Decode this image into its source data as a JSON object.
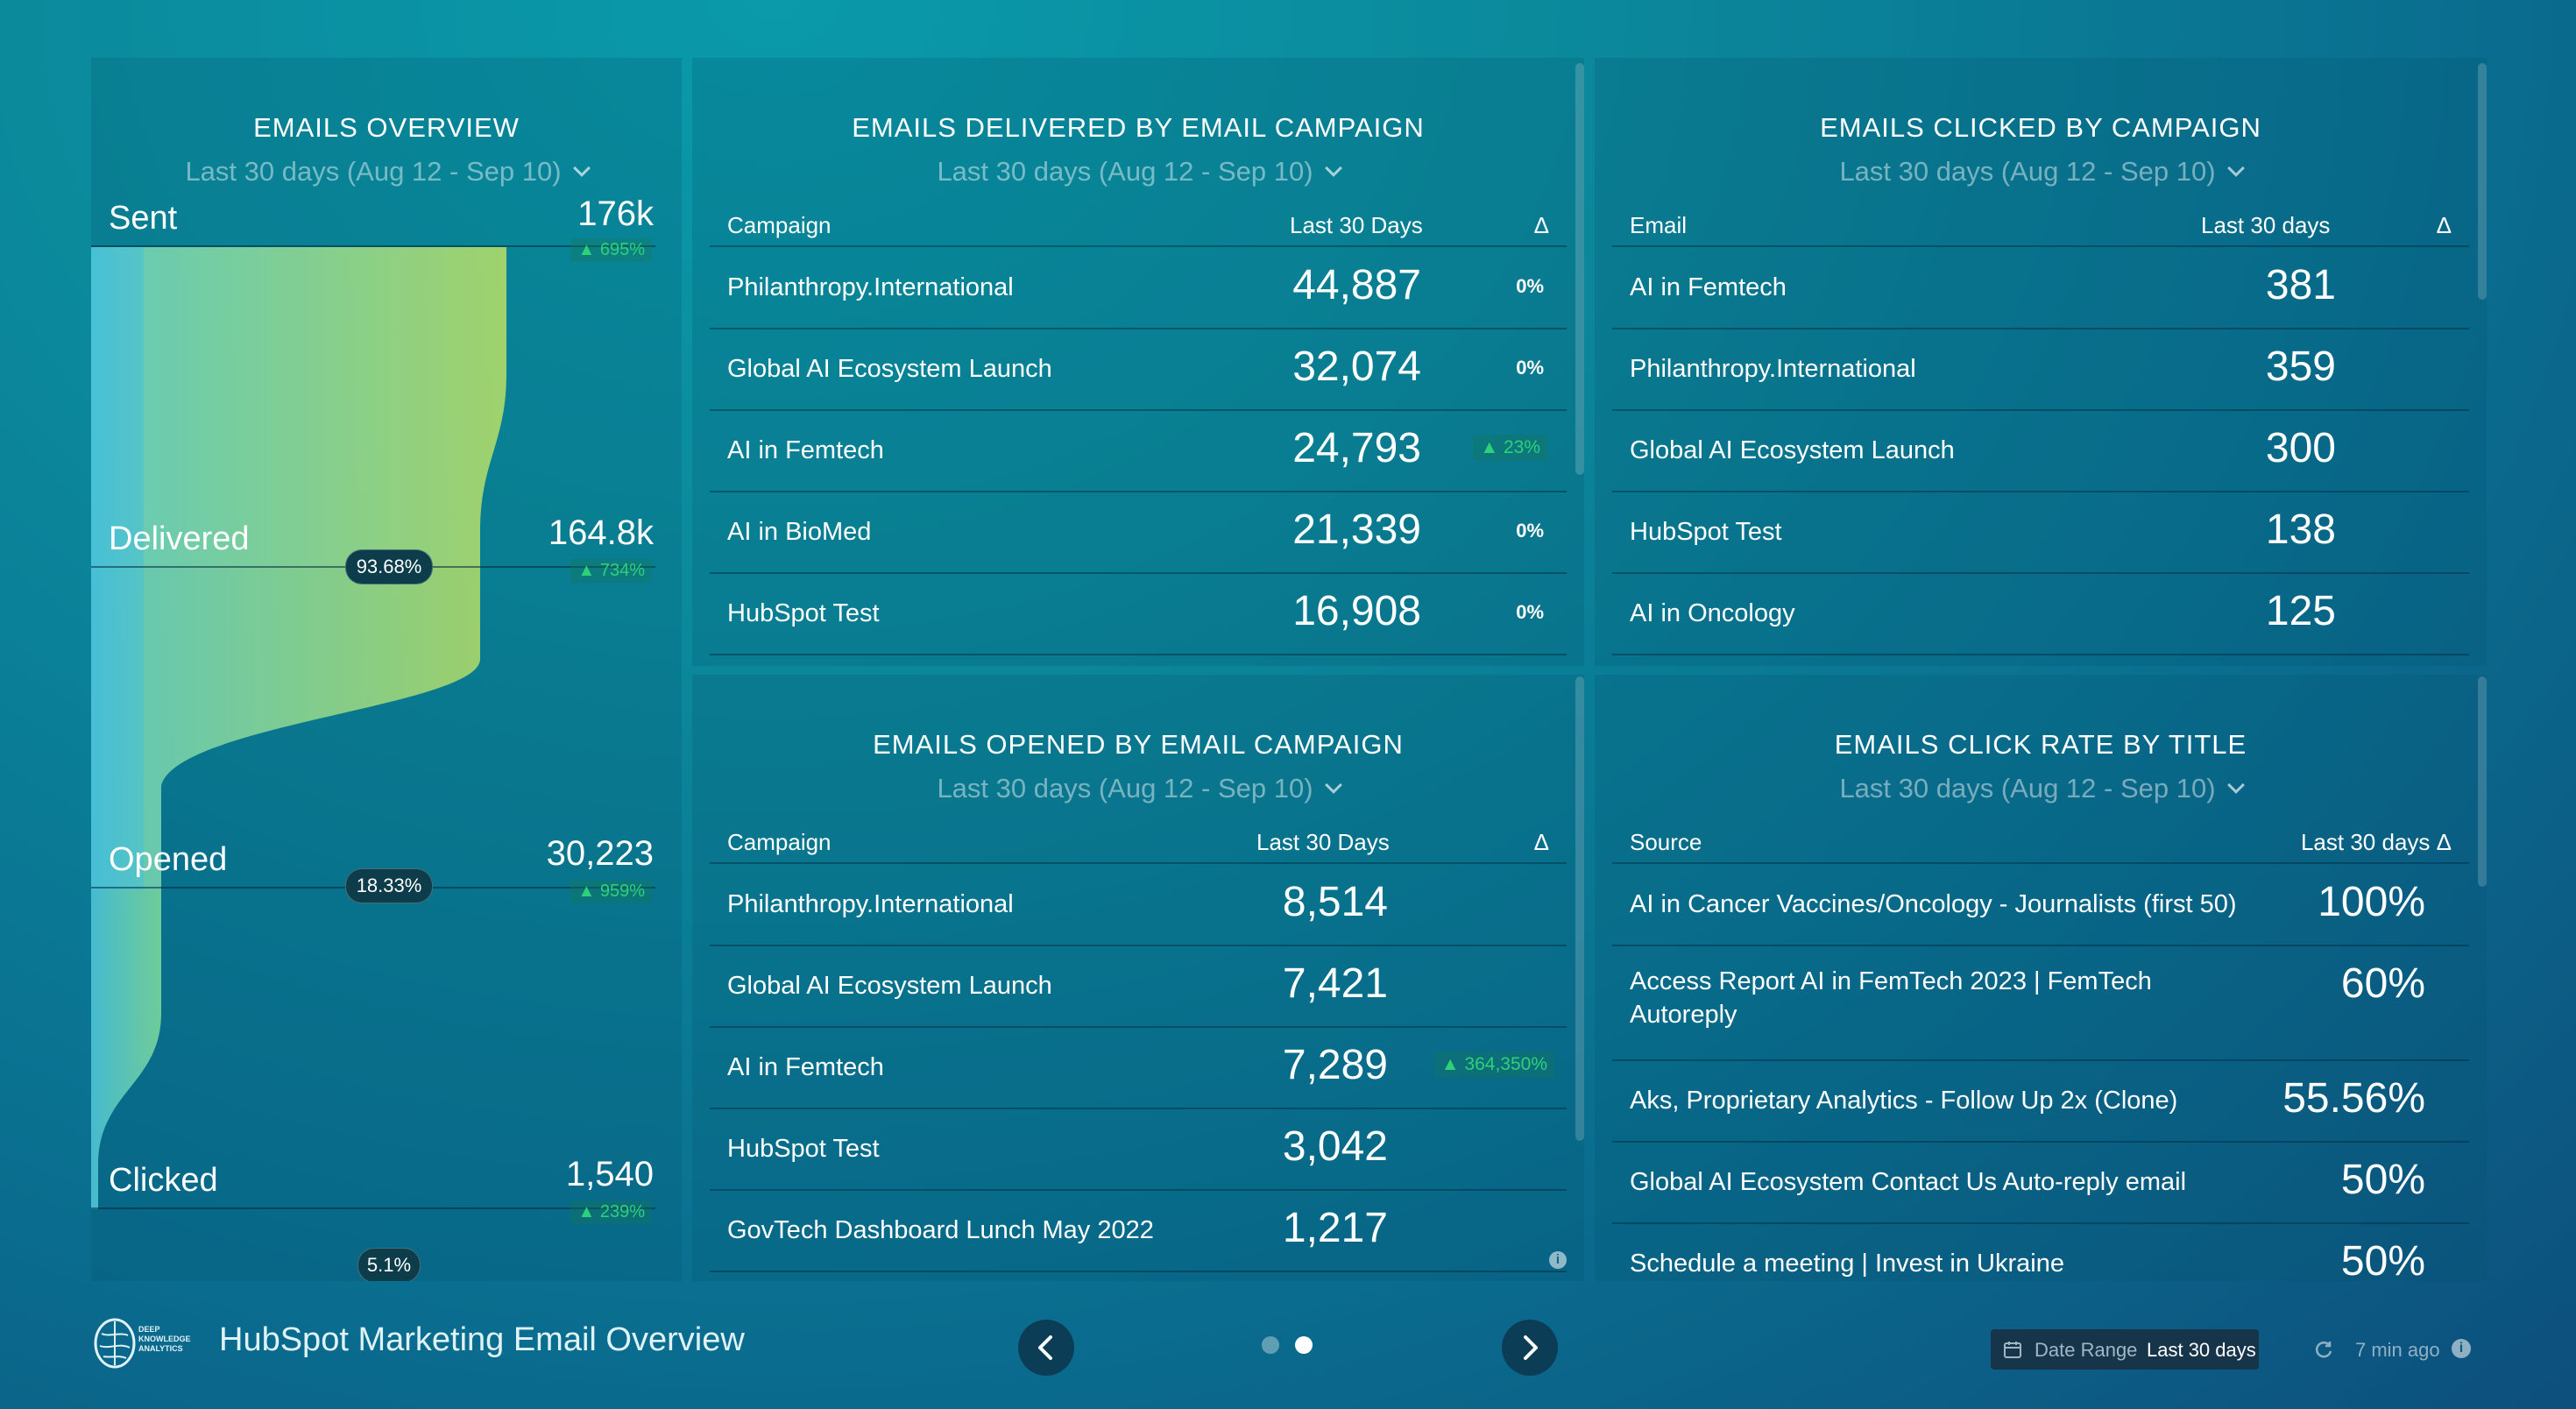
{
  "colors": {
    "positive": "#2fd07a",
    "funnel_start": "#4dc3d6",
    "funnel_end": "#a8d66a"
  },
  "overview": {
    "title": "EMAILS OVERVIEW",
    "range": "Last 30 days (Aug 12 - Sep 10)",
    "stages": [
      {
        "label": "Sent",
        "value": "176k",
        "delta": "▲ 695%",
        "pct": ""
      },
      {
        "label": "Delivered",
        "value": "164.8k",
        "delta": "▲ 734%",
        "pct": "93.68%"
      },
      {
        "label": "Opened",
        "value": "30,223",
        "delta": "▲ 959%",
        "pct": "18.33%"
      },
      {
        "label": "Clicked",
        "value": "1,540",
        "delta": "▲ 239%",
        "pct": "5.1%"
      }
    ]
  },
  "delivered": {
    "title": "EMAILS DELIVERED BY EMAIL CAMPAIGN",
    "range": "Last 30 days (Aug 12 - Sep 10)",
    "col1": "Campaign",
    "col2": "Last 30 Days",
    "col3": "Δ",
    "rows": [
      {
        "name": "Philanthropy.International",
        "value": "44,887",
        "delta": "0%",
        "up": false
      },
      {
        "name": "Global AI Ecosystem Launch",
        "value": "32,074",
        "delta": "0%",
        "up": false
      },
      {
        "name": "AI in Femtech",
        "value": "24,793",
        "delta": "▲ 23%",
        "up": true
      },
      {
        "name": "AI in BioMed",
        "value": "21,339",
        "delta": "0%",
        "up": false
      },
      {
        "name": "HubSpot Test",
        "value": "16,908",
        "delta": "0%",
        "up": false
      }
    ]
  },
  "clicked": {
    "title": "EMAILS CLICKED BY CAMPAIGN",
    "range": "Last 30 days (Aug 12 - Sep 10)",
    "col1": "Email",
    "col2": "Last 30 days",
    "col3": "Δ",
    "rows": [
      {
        "name": "AI in Femtech",
        "value": "381"
      },
      {
        "name": "Philanthropy.International",
        "value": "359"
      },
      {
        "name": "Global AI Ecosystem Launch",
        "value": "300"
      },
      {
        "name": "HubSpot Test",
        "value": "138"
      },
      {
        "name": "AI in Oncology",
        "value": "125"
      }
    ]
  },
  "opened": {
    "title": "EMAILS OPENED BY EMAIL CAMPAIGN",
    "range": "Last 30 days (Aug 12 - Sep 10)",
    "col1": "Campaign",
    "col2": "Last 30 Days",
    "col3": "Δ",
    "rows": [
      {
        "name": "Philanthropy.International",
        "value": "8,514",
        "delta": ""
      },
      {
        "name": "Global AI Ecosystem Launch",
        "value": "7,421",
        "delta": ""
      },
      {
        "name": "AI in Femtech",
        "value": "7,289",
        "delta": "▲ 364,350%"
      },
      {
        "name": "HubSpot Test",
        "value": "3,042",
        "delta": ""
      },
      {
        "name": "GovTech Dashboard Lunch May 2022",
        "value": "1,217",
        "delta": ""
      }
    ]
  },
  "clickrate": {
    "title": "EMAILS CLICK RATE BY TITLE",
    "range": "Last 30 days (Aug 12 - Sep 10)",
    "col1": "Source",
    "col2": "Last 30 days Δ",
    "rows": [
      {
        "name": "AI in Cancer Vaccines/Oncology - Journalists (first 50)",
        "name2": "",
        "value": "100%"
      },
      {
        "name": "Access Report AI in FemTech 2023 | FemTech",
        "name2": "Autoreply",
        "value": "60%"
      },
      {
        "name": "Aks, Proprietary Analytics - Follow Up 2x (Clone)",
        "name2": "",
        "value": "55.56%"
      },
      {
        "name": "Global AI Ecosystem Contact Us Auto-reply email",
        "name2": "",
        "value": "50%"
      },
      {
        "name": "Schedule a meeting | Invest in Ukraine",
        "name2": "",
        "value": "50%"
      }
    ]
  },
  "footer": {
    "logo_lines": [
      "DEEP",
      "KNOWLEDGE",
      "ANALYTICS"
    ],
    "title": "HubSpot Marketing Email Overview",
    "date_range_label": "Date Range",
    "date_range_value": "Last 30 days",
    "updated": "7 min ago",
    "page_count": 2,
    "active_page": 2
  }
}
